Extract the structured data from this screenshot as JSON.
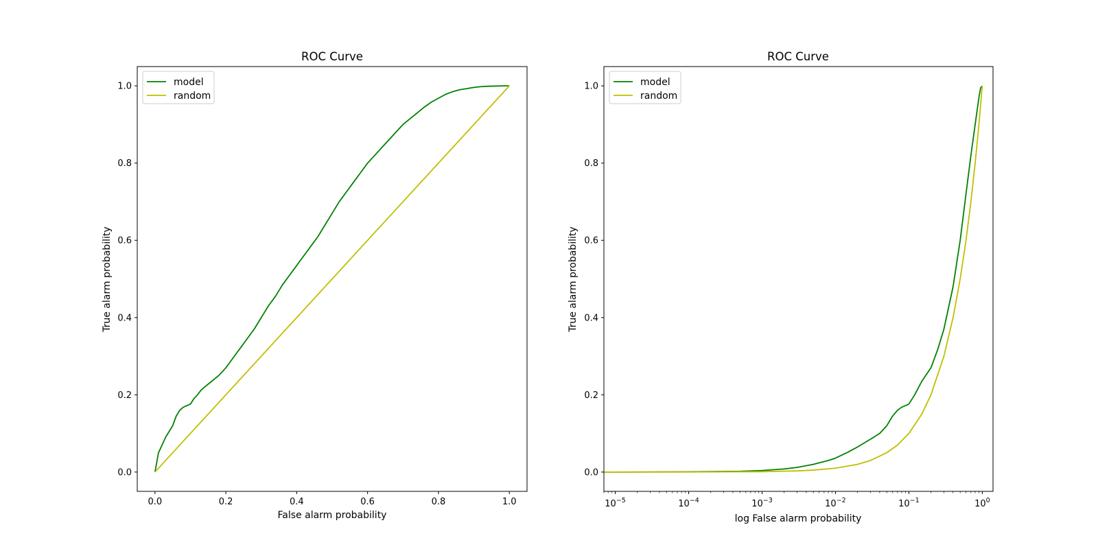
{
  "chart_data": [
    {
      "type": "line",
      "title": "ROC Curve",
      "xlabel": "False alarm probability",
      "ylabel": "True alarm probability",
      "xscale": "linear",
      "xlim": [
        -0.05,
        1.05
      ],
      "ylim": [
        -0.05,
        1.05
      ],
      "xticks": [
        0.0,
        0.2,
        0.4,
        0.6,
        0.8,
        1.0
      ],
      "xtick_labels": [
        "0.0",
        "0.2",
        "0.4",
        "0.6",
        "0.8",
        "1.0"
      ],
      "yticks": [
        0.0,
        0.2,
        0.4,
        0.6,
        0.8,
        1.0
      ],
      "ytick_labels": [
        "0.0",
        "0.2",
        "0.4",
        "0.6",
        "0.8",
        "1.0"
      ],
      "grid": false,
      "legend_position": "upper left",
      "series": [
        {
          "name": "model",
          "color": "#008000",
          "x": [
            0.0,
            0.01,
            0.02,
            0.03,
            0.04,
            0.05,
            0.06,
            0.07,
            0.08,
            0.09,
            0.1,
            0.11,
            0.12,
            0.13,
            0.14,
            0.16,
            0.18,
            0.2,
            0.22,
            0.24,
            0.26,
            0.28,
            0.3,
            0.32,
            0.34,
            0.36,
            0.38,
            0.4,
            0.42,
            0.44,
            0.46,
            0.48,
            0.5,
            0.52,
            0.54,
            0.56,
            0.58,
            0.6,
            0.62,
            0.64,
            0.66,
            0.68,
            0.7,
            0.72,
            0.74,
            0.76,
            0.78,
            0.8,
            0.82,
            0.84,
            0.86,
            0.88,
            0.9,
            0.92,
            0.94,
            0.96,
            0.98,
            1.0
          ],
          "y": [
            0.0,
            0.05,
            0.07,
            0.09,
            0.105,
            0.12,
            0.145,
            0.16,
            0.168,
            0.172,
            0.176,
            0.19,
            0.2,
            0.212,
            0.22,
            0.235,
            0.25,
            0.27,
            0.295,
            0.32,
            0.345,
            0.37,
            0.4,
            0.43,
            0.455,
            0.485,
            0.51,
            0.535,
            0.56,
            0.585,
            0.61,
            0.64,
            0.67,
            0.7,
            0.725,
            0.75,
            0.775,
            0.8,
            0.82,
            0.84,
            0.86,
            0.88,
            0.9,
            0.915,
            0.93,
            0.945,
            0.958,
            0.968,
            0.978,
            0.985,
            0.99,
            0.993,
            0.996,
            0.998,
            0.999,
            0.9995,
            1.0,
            1.0
          ]
        },
        {
          "name": "random",
          "color": "#bfbf00",
          "x": [
            0.0,
            1.0
          ],
          "y": [
            0.0,
            1.0
          ]
        }
      ]
    },
    {
      "type": "line",
      "title": "ROC Curve",
      "xlabel": "log False alarm probability",
      "ylabel": "True alarm probability",
      "xscale": "log",
      "xlim": [
        7e-06,
        1.4
      ],
      "ylim": [
        -0.05,
        1.05
      ],
      "xtick_labels": [
        {
          "base": "10",
          "exp": "−5",
          "value": 1e-05
        },
        {
          "base": "10",
          "exp": "−4",
          "value": 0.0001
        },
        {
          "base": "10",
          "exp": "−3",
          "value": 0.001
        },
        {
          "base": "10",
          "exp": "−2",
          "value": 0.01
        },
        {
          "base": "10",
          "exp": "−1",
          "value": 0.1
        },
        {
          "base": "10",
          "exp": "0",
          "value": 1
        }
      ],
      "yticks": [
        0.0,
        0.2,
        0.4,
        0.6,
        0.8,
        1.0
      ],
      "ytick_labels": [
        "0.0",
        "0.2",
        "0.4",
        "0.6",
        "0.8",
        "1.0"
      ],
      "grid": false,
      "legend_position": "upper left",
      "series": [
        {
          "name": "model",
          "color": "#008000",
          "x": [
            7e-06,
            1e-05,
            0.0001,
            0.0005,
            0.001,
            0.002,
            0.003,
            0.005,
            0.008,
            0.01,
            0.015,
            0.02,
            0.03,
            0.04,
            0.05,
            0.06,
            0.07,
            0.08,
            0.09,
            0.1,
            0.12,
            0.15,
            0.2,
            0.25,
            0.3,
            0.4,
            0.5,
            0.6,
            0.7,
            0.8,
            0.9,
            0.95,
            1.0
          ],
          "y": [
            0.0,
            0.0,
            0.0005,
            0.002,
            0.004,
            0.008,
            0.012,
            0.02,
            0.03,
            0.036,
            0.052,
            0.065,
            0.085,
            0.1,
            0.12,
            0.145,
            0.16,
            0.168,
            0.172,
            0.176,
            0.2,
            0.235,
            0.27,
            0.32,
            0.37,
            0.48,
            0.6,
            0.72,
            0.82,
            0.9,
            0.97,
            0.995,
            1.0
          ]
        },
        {
          "name": "random",
          "color": "#bfbf00",
          "x": [
            7e-06,
            1e-05,
            0.0001,
            0.001,
            0.003,
            0.005,
            0.01,
            0.02,
            0.03,
            0.05,
            0.07,
            0.1,
            0.15,
            0.2,
            0.3,
            0.4,
            0.5,
            0.6,
            0.7,
            0.8,
            0.9,
            1.0
          ],
          "y": [
            7e-06,
            1e-05,
            0.0001,
            0.001,
            0.003,
            0.005,
            0.01,
            0.02,
            0.03,
            0.05,
            0.07,
            0.1,
            0.15,
            0.2,
            0.3,
            0.4,
            0.5,
            0.6,
            0.7,
            0.8,
            0.9,
            1.0
          ]
        }
      ]
    }
  ]
}
